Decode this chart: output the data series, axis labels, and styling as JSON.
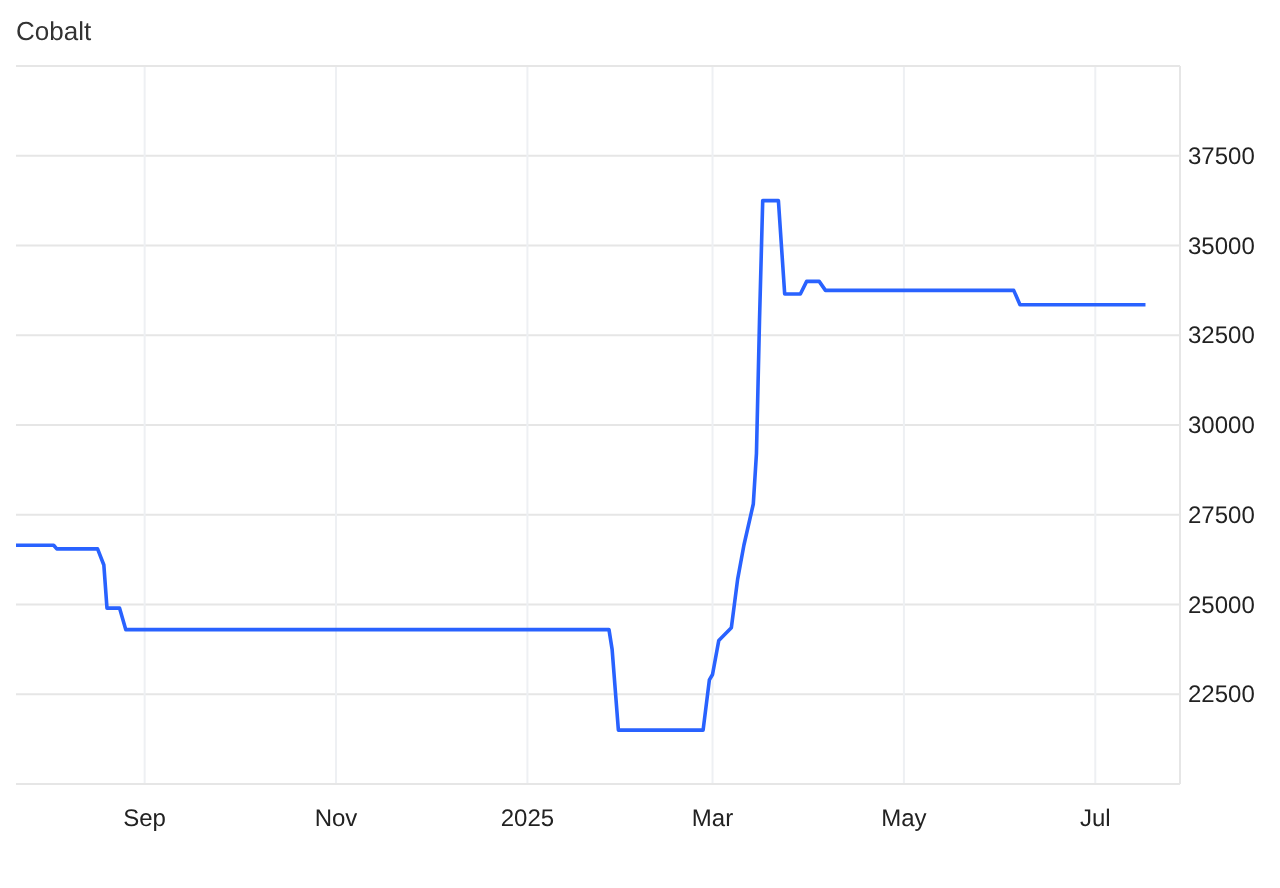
{
  "chart_data": {
    "type": "line",
    "title": "Cobalt",
    "x": [
      "2024-07-22",
      "2024-08-03",
      "2024-08-04",
      "2024-08-17",
      "2024-08-19",
      "2024-08-20",
      "2024-08-24",
      "2024-08-26",
      "2025-01-27",
      "2025-01-28",
      "2025-01-30",
      "2025-02-26",
      "2025-02-28",
      "2025-03-01",
      "2025-03-03",
      "2025-03-07",
      "2025-03-09",
      "2025-03-11",
      "2025-03-14",
      "2025-03-15",
      "2025-03-16",
      "2025-03-17",
      "2025-03-22",
      "2025-03-24",
      "2025-03-29",
      "2025-03-31",
      "2025-04-04",
      "2025-04-06",
      "2025-06-05",
      "2025-06-07",
      "2025-07-17"
    ],
    "series": [
      {
        "color": "#2962ff",
        "values": [
          26650,
          26650,
          26550,
          26550,
          26100,
          24900,
          24900,
          24300,
          24300,
          23750,
          21500,
          21500,
          22900,
          23050,
          24000,
          24350,
          25700,
          26650,
          27800,
          29200,
          33000,
          36250,
          36250,
          33650,
          33650,
          34000,
          34000,
          33750,
          33750,
          33350,
          33350
        ]
      }
    ],
    "xlim": [
      "2024-07-22",
      "2025-07-28"
    ],
    "xticks": [
      {
        "value": "2024-09-01",
        "label": "Sep"
      },
      {
        "value": "2024-11-01",
        "label": "Nov"
      },
      {
        "value": "2025-01-01",
        "label": "2025"
      },
      {
        "value": "2025-03-01",
        "label": "Mar"
      },
      {
        "value": "2025-05-01",
        "label": "May"
      },
      {
        "value": "2025-07-01",
        "label": "Jul"
      }
    ],
    "ylim": [
      20000,
      40000
    ],
    "yticks": [
      22500,
      25000,
      27500,
      30000,
      32500,
      35000,
      37500
    ],
    "grid": true,
    "line_style": "solid"
  }
}
